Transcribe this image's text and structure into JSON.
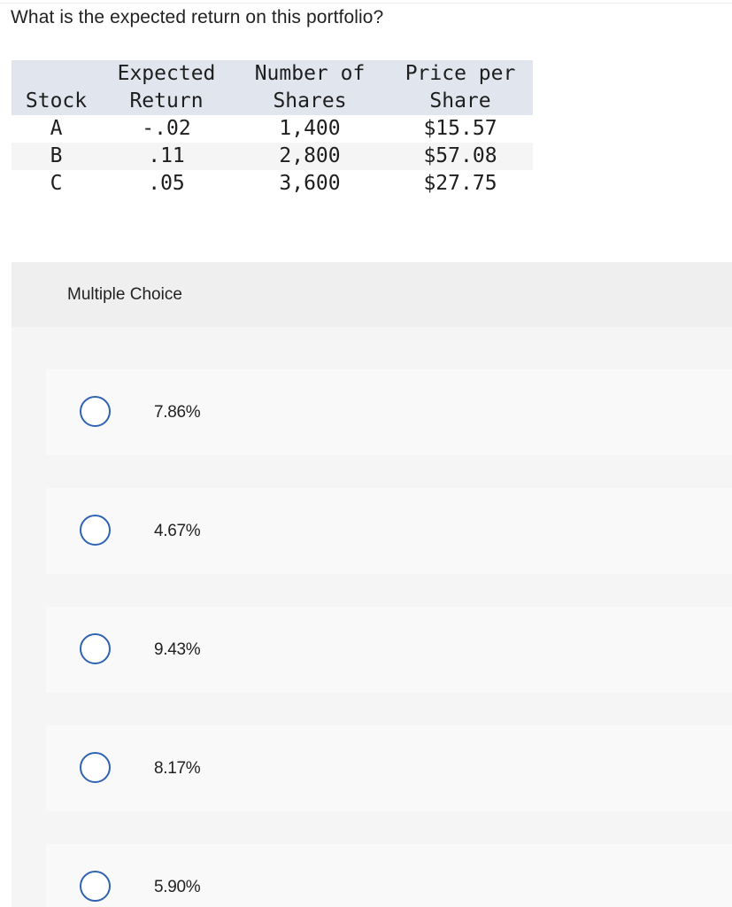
{
  "question": "What is the expected return on this portfolio?",
  "table": {
    "headers": [
      [
        "",
        "Stock"
      ],
      [
        "Expected",
        "Return"
      ],
      [
        "Number of",
        "Shares"
      ],
      [
        "Price per",
        "Share"
      ]
    ],
    "rows": [
      [
        "A",
        "-.02",
        "1,400",
        "$15.57"
      ],
      [
        "B",
        ".11",
        "2,800",
        "$57.08"
      ],
      [
        "C",
        ".05",
        "3,600",
        "$27.75"
      ]
    ]
  },
  "multiple_choice": {
    "title": "Multiple Choice",
    "options": [
      "7.86%",
      "4.67%",
      "9.43%",
      "8.17%",
      "5.90%"
    ]
  },
  "colors": {
    "table_header_bg": "#e1e5ee",
    "radio_border": "#2f63b3",
    "panel_bg": "#f5f5f5"
  }
}
